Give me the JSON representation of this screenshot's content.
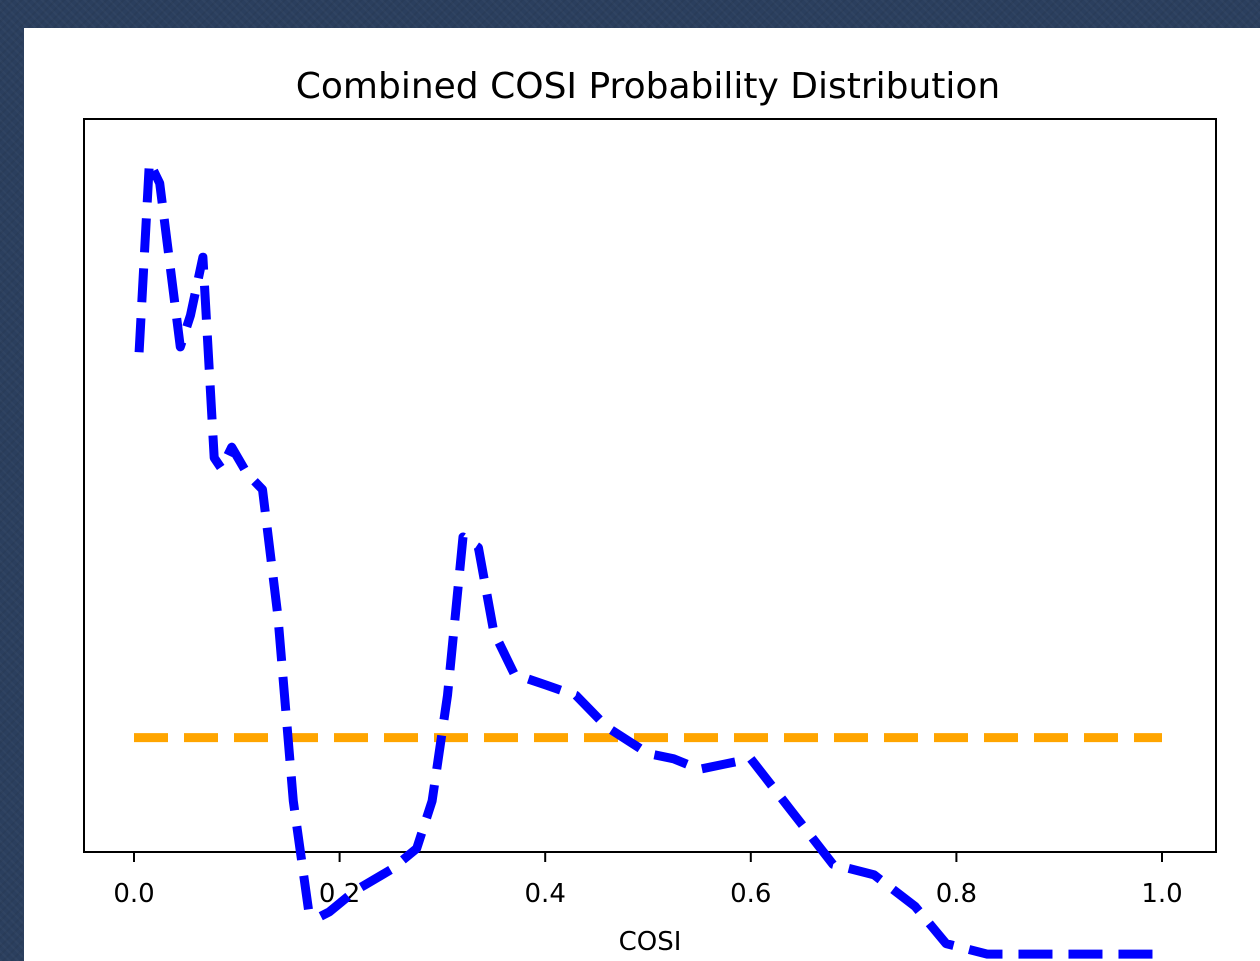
{
  "chart_data": {
    "type": "line",
    "title": "Combined COSI Probability Distribution",
    "xlabel": "COSI",
    "ylabel": "",
    "xlim": [
      0.0,
      1.0
    ],
    "x_ticks": [
      "0.0",
      "0.2",
      "0.4",
      "0.6",
      "0.8",
      "1.0"
    ],
    "y_ticks_shown": false,
    "grid": false,
    "legend": "none",
    "series": [
      {
        "color": "#0000ff",
        "style": "dashed",
        "points": [
          [
            0.005,
            0.6
          ],
          [
            0.015,
            0.96
          ],
          [
            0.025,
            0.92
          ],
          [
            0.045,
            0.61
          ],
          [
            0.055,
            0.67
          ],
          [
            0.067,
            0.78
          ],
          [
            0.078,
            0.4
          ],
          [
            0.085,
            0.38
          ],
          [
            0.095,
            0.42
          ],
          [
            0.11,
            0.37
          ],
          [
            0.125,
            0.34
          ],
          [
            0.14,
            0.1
          ],
          [
            0.155,
            -0.25
          ],
          [
            0.17,
            -0.46
          ],
          [
            0.18,
            -0.47
          ],
          [
            0.19,
            -0.46
          ],
          [
            0.215,
            -0.42
          ],
          [
            0.25,
            -0.38
          ],
          [
            0.275,
            -0.34
          ],
          [
            0.29,
            -0.25
          ],
          [
            0.305,
            -0.05
          ],
          [
            0.32,
            0.25
          ],
          [
            0.335,
            0.23
          ],
          [
            0.35,
            0.07
          ],
          [
            0.37,
            -0.01
          ],
          [
            0.4,
            -0.03
          ],
          [
            0.43,
            -0.05
          ],
          [
            0.46,
            -0.11
          ],
          [
            0.5,
            -0.16
          ],
          [
            0.525,
            -0.17
          ],
          [
            0.55,
            -0.19
          ],
          [
            0.575,
            -0.18
          ],
          [
            0.6,
            -0.17
          ],
          [
            0.64,
            -0.27
          ],
          [
            0.68,
            -0.37
          ],
          [
            0.72,
            -0.39
          ],
          [
            0.76,
            -0.45
          ],
          [
            0.79,
            -0.52
          ],
          [
            0.83,
            -0.54
          ],
          [
            1.0,
            -0.54
          ]
        ]
      },
      {
        "color": "#ffa500",
        "style": "dashed",
        "points": [
          [
            0.0,
            -0.13
          ],
          [
            1.0,
            -0.13
          ]
        ]
      }
    ]
  },
  "colors": {
    "primary_line": "#0000ff",
    "reference_line": "#ffa500",
    "page_background": "#2b3f5e",
    "figure_background": "#ffffff"
  }
}
